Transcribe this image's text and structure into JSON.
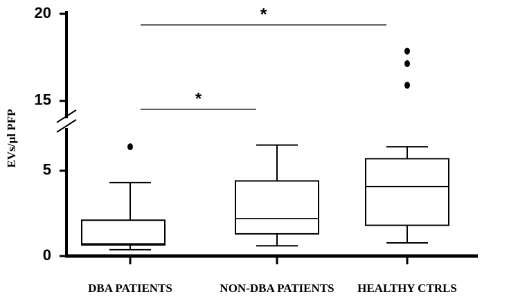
{
  "chart_data": {
    "type": "box",
    "y_label": "EVs/µl PFP",
    "categories": [
      "DBA PATIENTS",
      "NON-DBA PATIENTS",
      "HEALTHY CTRLS"
    ],
    "boxes": [
      {
        "min": 0.37,
        "q1": 0.65,
        "median": 0.73,
        "q3": 2.1,
        "max": 4.3,
        "outliers": [
          6.4
        ]
      },
      {
        "min": 0.6,
        "q1": 1.3,
        "median": 2.2,
        "q3": 4.4,
        "max": 6.5,
        "outliers": []
      },
      {
        "min": 0.77,
        "q1": 1.8,
        "median": 4.07,
        "q3": 5.7,
        "max": 6.4,
        "outliers": [
          17.86,
          17.14,
          15.9
        ]
      }
    ],
    "color": "#000000",
    "ylim": [
      0,
      20
    ],
    "y_break": [
      7.5,
      14
    ],
    "yticks": [
      0,
      5,
      15,
      20
    ],
    "annotations": [
      {
        "from": 0,
        "to": 2,
        "label": "*"
      },
      {
        "from": 0,
        "to": 1,
        "label": "*"
      }
    ]
  }
}
